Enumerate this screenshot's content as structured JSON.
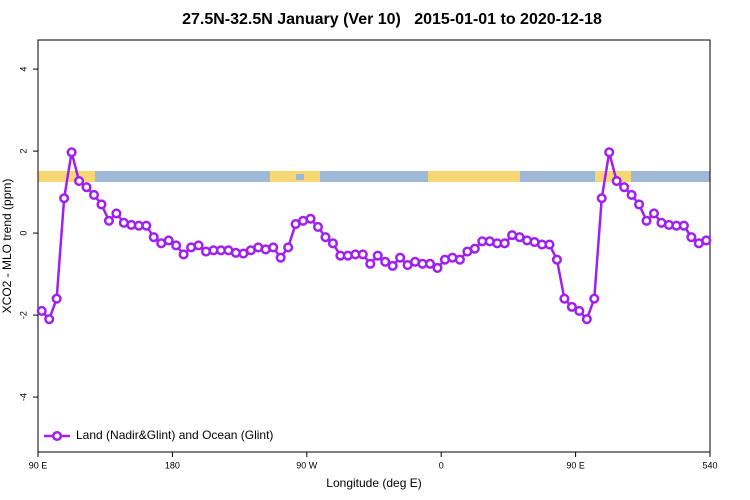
{
  "chart_data": {
    "type": "line",
    "title": "27.5N-32.5N January (Ver 10)   2015-01-01 to 2020-12-18",
    "xlabel": "Longitude (deg E)",
    "ylabel": "XCO2 - MLO trend (ppm)",
    "xlim": [
      90,
      540
    ],
    "ylim": [
      -5.34,
      4.71
    ],
    "xticks": [
      {
        "value": 90,
        "label": "90 E"
      },
      180,
      {
        "value": 270,
        "label": "90 W"
      },
      {
        "value": 360,
        "label": "0"
      },
      {
        "value": 450,
        "label": "90 E"
      },
      540
    ],
    "yticks": [
      -4,
      -2,
      0,
      2,
      4
    ],
    "legend": "bottom-left",
    "x": [
      92.5,
      97.5,
      102.5,
      107.5,
      112.5,
      117.5,
      122.5,
      127.5,
      132.5,
      137.5,
      142.5,
      147.5,
      152.5,
      157.5,
      162.5,
      167.5,
      172.5,
      177.5,
      182.5,
      187.5,
      192.5,
      197.5,
      202.5,
      207.5,
      212.5,
      217.5,
      222.5,
      227.5,
      232.5,
      237.5,
      242.5,
      247.5,
      252.5,
      257.5,
      262.5,
      267.5,
      272.5,
      277.5,
      282.5,
      287.5,
      292.5,
      297.5,
      302.5,
      307.5,
      312.5,
      317.5,
      322.5,
      327.5,
      332.5,
      337.5,
      342.5,
      347.5,
      352.5,
      357.5,
      362.5,
      367.5,
      372.5,
      377.5,
      382.5,
      387.5,
      392.5,
      397.5,
      402.5,
      407.5,
      412.5,
      417.5,
      422.5,
      427.5,
      432.5,
      437.5,
      442.5,
      447.5,
      452.5,
      457.5,
      462.5,
      467.5,
      472.5,
      477.5,
      482.5,
      487.5,
      492.5,
      497.5,
      502.5,
      507.5,
      512.5,
      517.5,
      522.5,
      527.5,
      532.5,
      537.5
    ],
    "series": [
      {
        "name": "Land (Nadir&Glint) and Ocean (Glint)",
        "color": "#a020f0",
        "values": [
          -1.9,
          -2.1,
          -1.6,
          0.85,
          1.97,
          1.27,
          1.12,
          0.93,
          0.7,
          0.3,
          0.48,
          0.25,
          0.2,
          0.18,
          0.18,
          -0.1,
          -0.25,
          -0.18,
          -0.3,
          -0.52,
          -0.35,
          -0.3,
          -0.45,
          -0.42,
          -0.42,
          -0.42,
          -0.48,
          -0.5,
          -0.42,
          -0.35,
          -0.4,
          -0.35,
          -0.6,
          -0.35,
          0.22,
          0.3,
          0.35,
          0.15,
          -0.1,
          -0.25,
          -0.55,
          -0.55,
          -0.52,
          -0.52,
          -0.75,
          -0.55,
          -0.7,
          -0.8,
          -0.6,
          -0.78,
          -0.7,
          -0.75,
          -0.75,
          -0.85,
          -0.65,
          -0.6,
          -0.65,
          -0.45,
          -0.38,
          -0.2,
          -0.2,
          -0.25,
          -0.25,
          -0.05,
          -0.1,
          -0.18,
          -0.22,
          -0.28,
          -0.28,
          -0.65,
          -1.6,
          -1.8,
          -1.9,
          -2.1,
          -1.6,
          0.85,
          1.97,
          1.27,
          1.12,
          0.93,
          0.7,
          0.3,
          0.48,
          0.25,
          0.2,
          0.18,
          0.18,
          -0.1,
          -0.25,
          -0.18
        ]
      }
    ]
  }
}
